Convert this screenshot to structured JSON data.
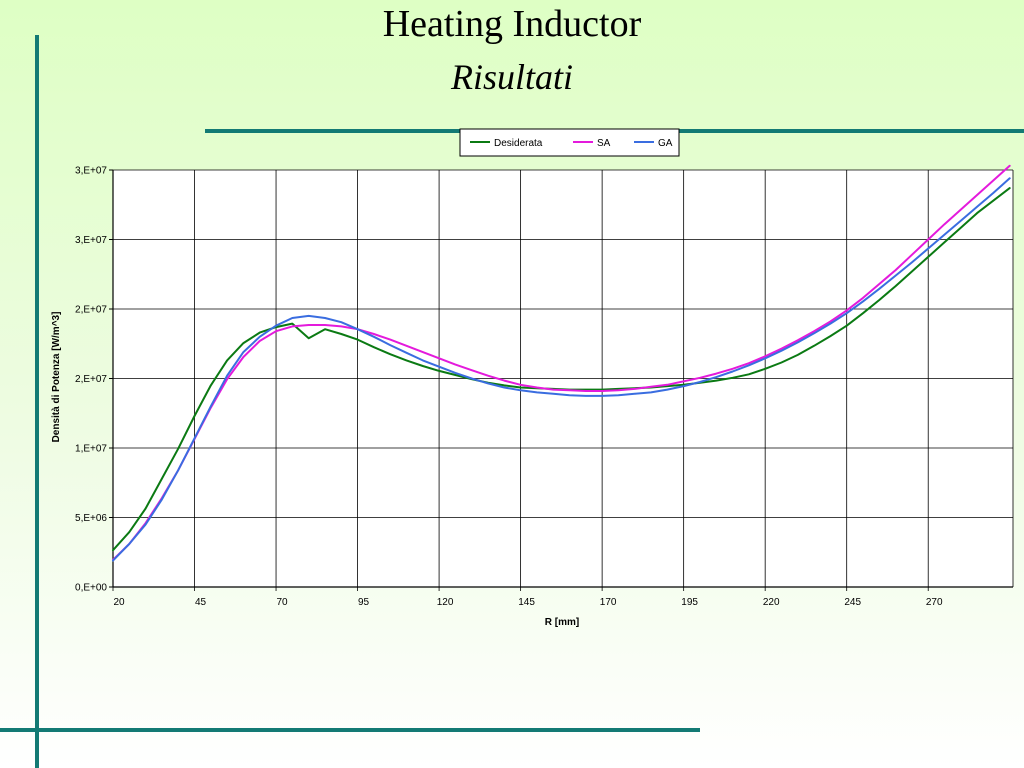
{
  "page": {
    "title": "Heating Inductor",
    "subtitle": "Risultati"
  },
  "chart_data": {
    "type": "line",
    "xlabel": "R [mm]",
    "ylabel": "Densità di Potenza [W/m^3]",
    "xlim": [
      20,
      296
    ],
    "ylim": [
      0,
      30000000
    ],
    "x_ticks": [
      "20",
      "45",
      "70",
      "95",
      "120",
      "145",
      "170",
      "195",
      "220",
      "245",
      "270"
    ],
    "y_ticks": [
      "0,E+00",
      "5,E+06",
      "1,E+07",
      "2,E+07",
      "2,E+07",
      "3,E+07",
      "3,E+07"
    ],
    "grid": true,
    "legend_position": "top-center",
    "x": [
      20,
      25,
      30,
      35,
      40,
      45,
      50,
      55,
      60,
      65,
      70,
      75,
      80,
      85,
      90,
      95,
      100,
      105,
      110,
      115,
      120,
      125,
      130,
      135,
      140,
      145,
      150,
      155,
      160,
      165,
      170,
      175,
      180,
      185,
      190,
      195,
      200,
      205,
      210,
      215,
      220,
      225,
      230,
      235,
      240,
      245,
      250,
      255,
      260,
      265,
      270,
      275,
      280,
      285,
      290,
      295
    ],
    "series": [
      {
        "name": "Desiderata",
        "color": "#0b7a13",
        "values": [
          2650000,
          3950000,
          5650000,
          7800000,
          9950000,
          12300000,
          14500000,
          16300000,
          17550000,
          18300000,
          18700000,
          18950000,
          17900000,
          18550000,
          18200000,
          17800000,
          17250000,
          16750000,
          16300000,
          15900000,
          15550000,
          15250000,
          14950000,
          14700000,
          14500000,
          14350000,
          14300000,
          14250000,
          14200000,
          14200000,
          14200000,
          14250000,
          14300000,
          14350000,
          14450000,
          14550000,
          14700000,
          14850000,
          15050000,
          15300000,
          15700000,
          16150000,
          16700000,
          17350000,
          18050000,
          18800000,
          19700000,
          20650000,
          21650000,
          22700000,
          23750000,
          24800000,
          25850000,
          26900000,
          27800000,
          28700000
        ]
      },
      {
        "name": "SA",
        "color": "#e41adc",
        "values": [
          1950000,
          3100000,
          4600000,
          6400000,
          8400000,
          10650000,
          12900000,
          14950000,
          16550000,
          17700000,
          18400000,
          18750000,
          18850000,
          18850000,
          18750000,
          18550000,
          18200000,
          17800000,
          17350000,
          16900000,
          16450000,
          16000000,
          15600000,
          15200000,
          14850000,
          14550000,
          14350000,
          14200000,
          14150000,
          14100000,
          14100000,
          14150000,
          14250000,
          14400000,
          14550000,
          14800000,
          15050000,
          15350000,
          15700000,
          16100000,
          16600000,
          17150000,
          17750000,
          18400000,
          19100000,
          19900000,
          20800000,
          21800000,
          22800000,
          23900000,
          25000000,
          26100000,
          27150000,
          28200000,
          29250000,
          30300000
        ]
      },
      {
        "name": "GA",
        "color": "#3a6de0",
        "values": [
          1900000,
          3100000,
          4500000,
          6300000,
          8400000,
          10700000,
          13000000,
          15200000,
          16900000,
          18000000,
          18800000,
          19350000,
          19500000,
          19350000,
          19050000,
          18550000,
          18000000,
          17400000,
          16850000,
          16300000,
          15850000,
          15400000,
          15000000,
          14650000,
          14350000,
          14150000,
          14000000,
          13900000,
          13800000,
          13750000,
          13750000,
          13800000,
          13900000,
          14000000,
          14200000,
          14450000,
          14750000,
          15100000,
          15500000,
          15950000,
          16450000,
          17000000,
          17600000,
          18250000,
          18950000,
          19700000,
          20550000,
          21450000,
          22400000,
          23350000,
          24350000,
          25350000,
          26350000,
          27350000,
          28350000,
          29400000
        ]
      }
    ]
  }
}
